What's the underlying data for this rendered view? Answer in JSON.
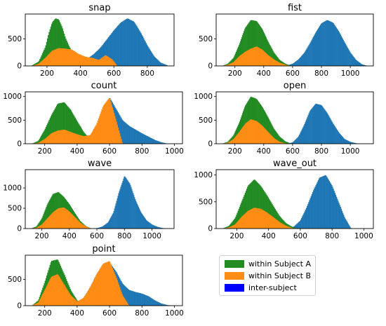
{
  "figure": {
    "legend": [
      {
        "label": "within Subject A",
        "color": "#228b22"
      },
      {
        "label": "within Subject B",
        "color": "#ff8c14"
      },
      {
        "label": "inter-subject",
        "color": "#0000ff"
      }
    ]
  },
  "chart_data": [
    {
      "type": "bar",
      "title": "snap",
      "xlim": [
        70,
        960
      ],
      "ylim": [
        0,
        960
      ],
      "xticks": [
        "200",
        "400",
        "600",
        "800"
      ],
      "yticks": [
        "0",
        "500"
      ],
      "series": [
        {
          "color": "#1f77b4",
          "x": [
            120,
            160,
            200,
            240,
            280,
            320,
            360,
            400,
            440,
            480,
            520,
            560,
            600,
            640,
            680,
            720,
            760,
            800,
            840,
            880,
            920
          ],
          "y": [
            0,
            0,
            5,
            15,
            30,
            40,
            60,
            90,
            130,
            220,
            340,
            500,
            660,
            800,
            880,
            820,
            620,
            380,
            180,
            60,
            10
          ]
        },
        {
          "color": "#228b22",
          "x": [
            110,
            150,
            190,
            210,
            230,
            250,
            270,
            290,
            310,
            330,
            350,
            370,
            400,
            430,
            460
          ],
          "y": [
            10,
            80,
            350,
            600,
            800,
            880,
            860,
            720,
            520,
            380,
            260,
            170,
            90,
            40,
            10
          ]
        },
        {
          "color": "#ff8c14",
          "x": [
            110,
            150,
            190,
            230,
            270,
            310,
            350,
            390,
            430,
            470,
            510,
            550,
            590,
            620
          ],
          "y": [
            0,
            40,
            150,
            280,
            330,
            320,
            300,
            220,
            170,
            150,
            110,
            200,
            120,
            0
          ]
        }
      ]
    },
    {
      "type": "bar",
      "title": "fist",
      "xlim": [
        70,
        1160
      ],
      "ylim": [
        0,
        960
      ],
      "xticks": [
        "200",
        "400",
        "600",
        "800",
        "1000"
      ],
      "yticks": [
        "0",
        "500"
      ],
      "series": [
        {
          "color": "#1f77b4",
          "x": [
            480,
            560,
            600,
            640,
            680,
            720,
            760,
            800,
            840,
            880,
            920,
            960,
            1000,
            1040,
            1080,
            1120
          ],
          "y": [
            0,
            10,
            40,
            120,
            240,
            420,
            620,
            790,
            850,
            800,
            640,
            440,
            250,
            110,
            30,
            0
          ]
        },
        {
          "color": "#228b22",
          "x": [
            110,
            150,
            190,
            230,
            270,
            310,
            350,
            390,
            430,
            470,
            510,
            550,
            590
          ],
          "y": [
            0,
            40,
            150,
            400,
            700,
            850,
            830,
            680,
            450,
            250,
            110,
            40,
            0
          ]
        },
        {
          "color": "#ff8c14",
          "x": [
            110,
            150,
            190,
            230,
            270,
            310,
            350,
            390,
            430,
            470,
            510,
            550,
            590
          ],
          "y": [
            0,
            20,
            70,
            180,
            260,
            320,
            360,
            300,
            200,
            120,
            60,
            20,
            0
          ]
        }
      ]
    },
    {
      "type": "bar",
      "title": "count",
      "xlim": [
        80,
        1050
      ],
      "ylim": [
        0,
        1100
      ],
      "xticks": [
        "200",
        "400",
        "600",
        "800",
        "1000"
      ],
      "yticks": [
        "0",
        "500",
        "1000"
      ],
      "series": [
        {
          "color": "#1f77b4",
          "x": [
            440,
            480,
            520,
            560,
            600,
            640,
            680,
            720,
            760,
            800,
            840,
            880,
            920,
            960
          ],
          "y": [
            0,
            60,
            320,
            760,
            980,
            740,
            500,
            380,
            300,
            220,
            150,
            80,
            30,
            0
          ]
        },
        {
          "color": "#228b22",
          "x": [
            120,
            160,
            200,
            240,
            280,
            320,
            360,
            400,
            440,
            480,
            520
          ],
          "y": [
            0,
            60,
            300,
            600,
            850,
            880,
            720,
            480,
            250,
            90,
            0
          ]
        },
        {
          "color": "#ff8c14",
          "x": [
            120,
            160,
            200,
            240,
            280,
            320,
            360,
            400,
            440,
            480,
            520,
            560,
            600,
            640,
            680
          ],
          "y": [
            0,
            20,
            100,
            220,
            280,
            300,
            250,
            200,
            160,
            180,
            420,
            800,
            980,
            500,
            0
          ]
        }
      ]
    },
    {
      "type": "bar",
      "title": "open",
      "xlim": [
        70,
        1160
      ],
      "ylim": [
        0,
        1100
      ],
      "xticks": [
        "200",
        "400",
        "600",
        "800",
        "1000"
      ],
      "yticks": [
        "0",
        "500",
        "1000"
      ],
      "series": [
        {
          "color": "#1f77b4",
          "x": [
            560,
            600,
            640,
            680,
            720,
            760,
            800,
            840,
            880,
            920,
            960,
            1000,
            1040,
            1080
          ],
          "y": [
            0,
            30,
            150,
            400,
            700,
            850,
            820,
            650,
            430,
            240,
            100,
            40,
            10,
            0
          ]
        },
        {
          "color": "#228b22",
          "x": [
            110,
            150,
            190,
            230,
            270,
            310,
            350,
            390,
            430,
            470,
            510,
            550,
            590
          ],
          "y": [
            0,
            40,
            180,
            450,
            800,
            1000,
            950,
            780,
            560,
            320,
            150,
            50,
            0
          ]
        },
        {
          "color": "#ff8c14",
          "x": [
            110,
            150,
            190,
            230,
            270,
            310,
            350,
            390,
            430,
            470,
            510,
            550,
            590
          ],
          "y": [
            0,
            20,
            100,
            250,
            420,
            520,
            480,
            380,
            250,
            120,
            40,
            10,
            0
          ]
        }
      ]
    },
    {
      "type": "bar",
      "title": "wave",
      "xlim": [
        80,
        1160
      ],
      "ylim": [
        0,
        1450
      ],
      "xticks": [
        "200",
        "400",
        "600",
        "800",
        "1000"
      ],
      "yticks": [
        "0",
        "500",
        "1000"
      ],
      "series": [
        {
          "color": "#1f77b4",
          "x": [
            560,
            600,
            640,
            680,
            720,
            760,
            800,
            840,
            880,
            920,
            960,
            1000,
            1040,
            1080,
            1120
          ],
          "y": [
            0,
            10,
            50,
            150,
            400,
            900,
            1300,
            1100,
            700,
            400,
            200,
            100,
            40,
            10,
            0
          ]
        },
        {
          "color": "#228b22",
          "x": [
            120,
            160,
            200,
            240,
            280,
            320,
            360,
            400,
            440,
            480,
            520,
            560
          ],
          "y": [
            0,
            50,
            250,
            600,
            850,
            900,
            780,
            600,
            380,
            180,
            60,
            0
          ]
        },
        {
          "color": "#ff8c14",
          "x": [
            120,
            160,
            200,
            240,
            280,
            320,
            360,
            400,
            440,
            480,
            520,
            560
          ],
          "y": [
            0,
            20,
            100,
            250,
            400,
            500,
            520,
            420,
            280,
            140,
            50,
            0
          ]
        }
      ]
    },
    {
      "type": "bar",
      "title": "wave_out",
      "xlim": [
        70,
        1060
      ],
      "ylim": [
        0,
        1100
      ],
      "xticks": [
        "200",
        "400",
        "600",
        "800",
        "1000"
      ],
      "yticks": [
        "0",
        "500",
        "1000"
      ],
      "series": [
        {
          "color": "#1f77b4",
          "x": [
            520,
            560,
            600,
            640,
            680,
            720,
            760,
            800,
            840,
            880,
            920
          ],
          "y": [
            0,
            40,
            150,
            400,
            700,
            950,
            1000,
            800,
            500,
            200,
            0
          ]
        },
        {
          "color": "#228b22",
          "x": [
            110,
            150,
            190,
            230,
            270,
            310,
            350,
            390,
            430,
            470,
            510,
            550,
            590
          ],
          "y": [
            0,
            50,
            200,
            500,
            800,
            920,
            800,
            620,
            420,
            230,
            100,
            30,
            0
          ]
        },
        {
          "color": "#ff8c14",
          "x": [
            110,
            150,
            190,
            230,
            270,
            310,
            350,
            390,
            430,
            470,
            510,
            550,
            590
          ],
          "y": [
            0,
            20,
            80,
            220,
            330,
            390,
            370,
            300,
            210,
            120,
            50,
            10,
            0
          ]
        }
      ]
    },
    {
      "type": "bar",
      "title": "point",
      "xlim": [
        80,
        1050
      ],
      "ylim": [
        0,
        960
      ],
      "xticks": [
        "200",
        "400",
        "600",
        "800",
        "1000"
      ],
      "yticks": [
        "0",
        "500"
      ],
      "series": [
        {
          "color": "#1f77b4",
          "x": [
            360,
            400,
            440,
            480,
            520,
            560,
            600,
            640,
            680,
            720,
            760,
            800,
            840,
            880,
            920,
            960,
            1000
          ],
          "y": [
            0,
            40,
            150,
            350,
            600,
            780,
            820,
            650,
            420,
            300,
            260,
            230,
            180,
            100,
            40,
            10,
            0
          ]
        },
        {
          "color": "#228b22",
          "x": [
            120,
            160,
            200,
            240,
            280,
            320,
            360,
            400,
            440
          ],
          "y": [
            0,
            100,
            450,
            850,
            880,
            600,
            300,
            100,
            0
          ]
        },
        {
          "color": "#ff8c14",
          "x": [
            120,
            160,
            200,
            240,
            280,
            320,
            360,
            400,
            440,
            480,
            520,
            560,
            600,
            640,
            680,
            720
          ],
          "y": [
            0,
            60,
            300,
            550,
            600,
            400,
            200,
            80,
            150,
            350,
            600,
            800,
            850,
            550,
            200,
            0
          ]
        }
      ]
    }
  ]
}
